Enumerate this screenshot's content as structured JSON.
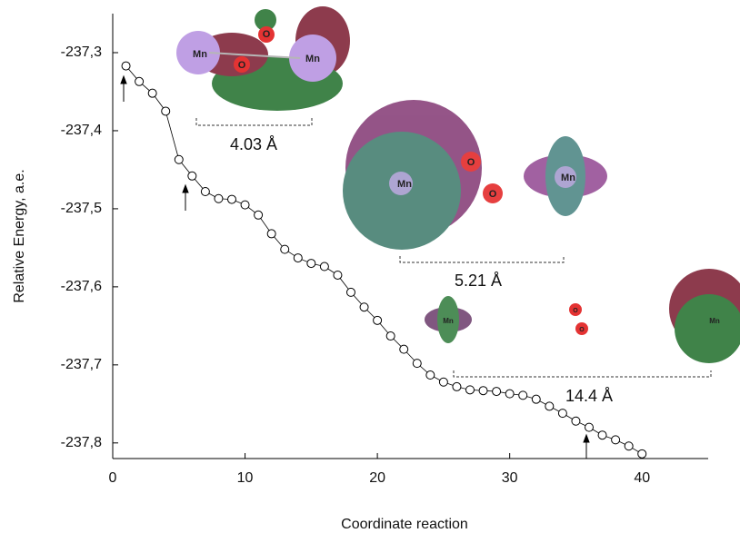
{
  "chart_data": {
    "type": "scatter",
    "xlabel": "Coordinate reaction",
    "ylabel": "Relative Energy, a.e.",
    "x": [
      1,
      2,
      3,
      4,
      5,
      6,
      7,
      8,
      9,
      10,
      11,
      12,
      13,
      14,
      15,
      16,
      17,
      18,
      19,
      20,
      21,
      22,
      23,
      24,
      25,
      26,
      27,
      28,
      29,
      30,
      31,
      32,
      33,
      34,
      35,
      36,
      37,
      38,
      39,
      40
    ],
    "values": [
      -237.317,
      -237.337,
      -237.352,
      -237.375,
      -237.437,
      -237.458,
      -237.478,
      -237.487,
      -237.488,
      -237.495,
      -237.508,
      -237.532,
      -237.552,
      -237.563,
      -237.57,
      -237.574,
      -237.585,
      -237.607,
      -237.626,
      -237.643,
      -237.663,
      -237.68,
      -237.698,
      -237.713,
      -237.722,
      -237.728,
      -237.732,
      -237.733,
      -237.734,
      -237.737,
      -237.739,
      -237.744,
      -237.753,
      -237.762,
      -237.772,
      -237.78,
      -237.79,
      -237.796,
      -237.804,
      -237.814
    ],
    "color": "#000000",
    "xlim": [
      0,
      45
    ],
    "ylim": [
      -237.82,
      -237.25
    ],
    "xticks": [
      0,
      10,
      20,
      30,
      40
    ],
    "yticks": [
      {
        "value": -237.3,
        "label": "-237,3"
      },
      {
        "value": -237.4,
        "label": "-237,4"
      },
      {
        "value": -237.5,
        "label": "-237,5"
      },
      {
        "value": -237.6,
        "label": "-237,6"
      },
      {
        "value": -237.7,
        "label": "-237,7"
      },
      {
        "value": -237.8,
        "label": "-237,8"
      }
    ],
    "annotations": [
      "4.03 Å",
      "5.21 Å",
      "14.4 Å"
    ],
    "molecule_labels": [
      [
        "Mn",
        "O",
        "O",
        "Mn"
      ],
      [
        "Mn",
        "O",
        "O",
        "Mn"
      ],
      [
        "Mn",
        "O",
        "O",
        "Mn"
      ]
    ]
  }
}
